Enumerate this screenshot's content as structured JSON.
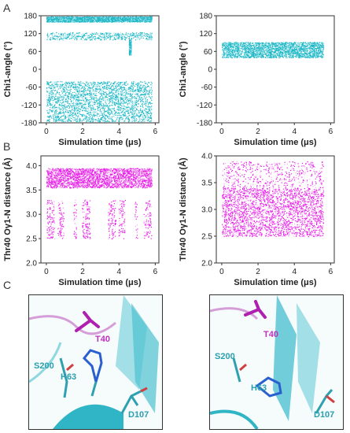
{
  "panel_labels": {
    "a": "A",
    "b": "B",
    "c": "C"
  },
  "colors": {
    "chi": "#1fb7c6",
    "chi_light": "#9fe4ea",
    "dist": "#e61ee6",
    "dist_light": "#f6a8f6",
    "residue_magenta": "#c030c0",
    "residue_cyan": "#2a9fae"
  },
  "chart_data": [
    {
      "id": "A-left",
      "type": "scatter",
      "xlabel": "Simulation time (μs)",
      "ylabel": "Chi1-angle (°)",
      "xlim": [
        -0.3,
        6.2
      ],
      "ylim": [
        -180,
        180
      ],
      "xticks": [
        0,
        2,
        4,
        6
      ],
      "yticks": [
        180,
        120,
        60,
        0,
        -60,
        -120,
        -180
      ],
      "series": [
        {
          "x_range": [
            0,
            5.8
          ],
          "y_band": [
            -175,
            -40
          ],
          "density": "dense"
        },
        {
          "x_range": [
            0,
            5.8
          ],
          "y_band": [
            160,
            178
          ],
          "density": "dense"
        },
        {
          "x_range": [
            0,
            5.8
          ],
          "y_band": [
            100,
            125
          ],
          "density": "sparse"
        },
        {
          "x_range": [
            4.55,
            4.65
          ],
          "y_band": [
            50,
            100
          ],
          "density": "dense"
        }
      ]
    },
    {
      "id": "A-right",
      "type": "scatter",
      "xlabel": "Simulation time (μs)",
      "ylabel": "Chi1-angle (°)",
      "xlim": [
        -0.3,
        6.2
      ],
      "ylim": [
        -180,
        180
      ],
      "xticks": [
        0,
        2,
        4,
        6
      ],
      "yticks": [
        180,
        120,
        60,
        0,
        -60,
        -120,
        -180
      ],
      "series": [
        {
          "x_range": [
            0,
            5.6
          ],
          "y_band": [
            40,
            92
          ],
          "density": "dense"
        }
      ]
    },
    {
      "id": "B-left",
      "type": "scatter",
      "xlabel": "Simulation time (μs)",
      "ylabel": "Thr40 Oγ1-N distance (Å)",
      "xlim": [
        -0.3,
        6.2
      ],
      "ylim": [
        2.0,
        4.2
      ],
      "xticks": [
        0,
        2,
        4,
        6
      ],
      "yticks": [
        2.0,
        2.5,
        3.0,
        3.5,
        4.0
      ],
      "series": [
        {
          "x_range": [
            0,
            5.8
          ],
          "y_band": [
            3.55,
            3.95
          ],
          "density": "dense"
        },
        {
          "x_range": [
            0,
            5.8
          ],
          "y_band": [
            2.5,
            3.3
          ],
          "density": "bursts"
        }
      ]
    },
    {
      "id": "B-right",
      "type": "scatter",
      "xlabel": "Simulation time (μs)",
      "ylabel": "Thr40 Oγ1-N distance (Å)",
      "xlim": [
        -0.3,
        6.2
      ],
      "ylim": [
        2.0,
        4.0
      ],
      "xticks": [
        0,
        2,
        4,
        6
      ],
      "yticks": [
        2.0,
        2.5,
        3.0,
        3.5,
        4.0
      ],
      "series": [
        {
          "x_range": [
            0,
            5.6
          ],
          "y_band": [
            2.5,
            3.4
          ],
          "density": "dense"
        },
        {
          "x_range": [
            0,
            5.6
          ],
          "y_band": [
            3.4,
            3.9
          ],
          "density": "sparse"
        }
      ]
    }
  ],
  "structures": {
    "left": {
      "t40": "T40",
      "s200": "S200",
      "h63": "H63",
      "d107": "D107"
    },
    "right": {
      "t40": "T40",
      "s200": "S200",
      "h63": "H63",
      "d107": "D107"
    }
  }
}
